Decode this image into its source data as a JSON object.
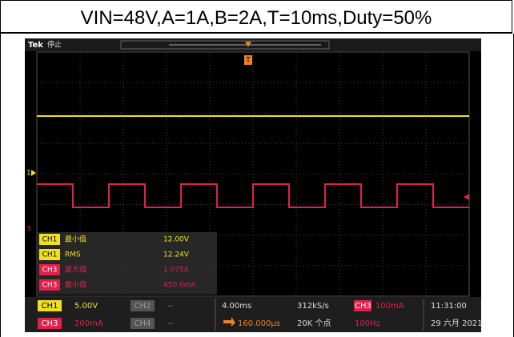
{
  "title": "VIN=48V,A=1A,B=2A,T=10ms,Duty=50%",
  "scope": {
    "brand": "Tek",
    "status": "停止",
    "markers": {
      "ch1": "1",
      "ch3": "3",
      "trigger": "T"
    },
    "measurements": [
      {
        "channel": "CH1",
        "name": "最小值",
        "value": "12.00V"
      },
      {
        "channel": "CH1",
        "name": "RMS",
        "value": "12.24V"
      },
      {
        "channel": "CH3",
        "name": "最大值",
        "value": "1.075A"
      },
      {
        "channel": "CH3",
        "name": "最小值",
        "value": "450.0mA"
      }
    ],
    "channels": [
      {
        "name": "CH1",
        "scale": "5.00V"
      },
      {
        "name": "CH2",
        "scale": "--"
      },
      {
        "name": "CH3",
        "scale": "200mA"
      },
      {
        "name": "CH4",
        "scale": "--"
      }
    ],
    "timebase": "4.00ms",
    "sample_rate": "312kS/s",
    "trigger_position": "160.000µs",
    "record_length": "20K 个点",
    "trigger_channel": "CH3",
    "trigger_level": "100mA",
    "trigger_freq": "100Hz",
    "time": "11:31:00",
    "date": "29 六月 2021"
  }
}
